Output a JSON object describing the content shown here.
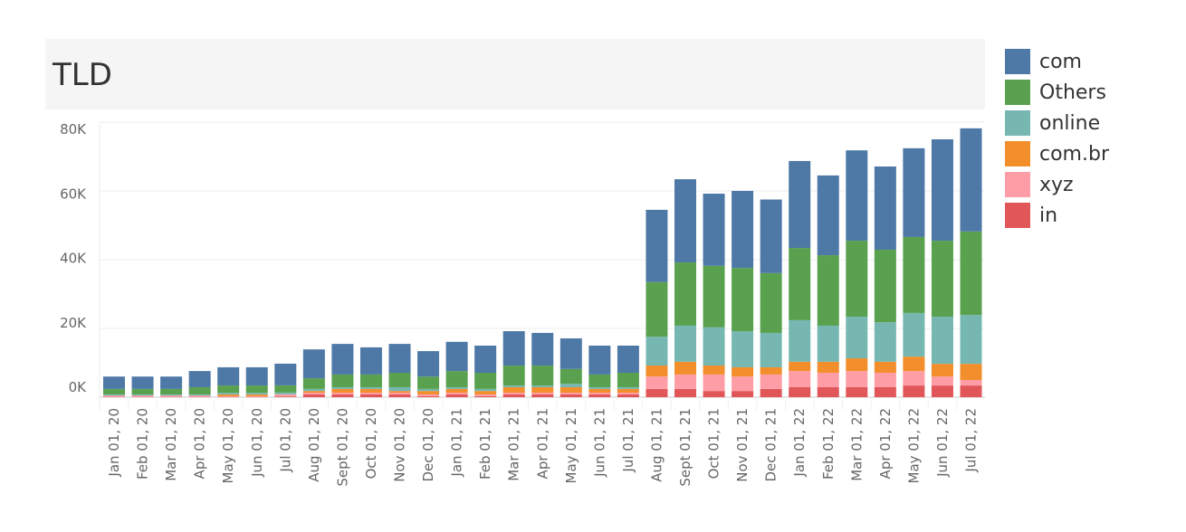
{
  "chart_data": {
    "type": "bar",
    "stacked": true,
    "title": "TLD",
    "xlabel": "",
    "ylabel": "",
    "ylim": [
      0,
      80000
    ],
    "yticks": [
      "0K",
      "20K",
      "40K",
      "60K",
      "80K"
    ],
    "grid": true,
    "legend_position": "right",
    "categories": [
      "Jan 01, 20",
      "Feb 01, 20",
      "Mar 01, 20",
      "Apr 01, 20",
      "May 01, 20",
      "Jun 01, 20",
      "Jul 01, 20",
      "Aug 01, 20",
      "Sept 01, 20",
      "Oct 01, 20",
      "Nov 01, 20",
      "Dec 01, 20",
      "Jan 01, 21",
      "Feb 01, 21",
      "Mar 01, 21",
      "Apr 01, 21",
      "May 01, 21",
      "Jun 01, 21",
      "Jul 01, 21",
      "Aug 01, 21",
      "Sept 01, 21",
      "Oct 01, 21",
      "Nov 01, 21",
      "Dec 01, 21",
      "Jan 01, 22",
      "Feb 01, 22",
      "Mar 01, 22",
      "Apr 01, 22",
      "May 01, 22",
      "Jun 01, 22",
      "Jul 01, 22"
    ],
    "series": [
      {
        "name": "in",
        "color": "#e15759",
        "values": [
          100,
          100,
          100,
          100,
          100,
          100,
          200,
          800,
          800,
          800,
          800,
          300,
          800,
          300,
          800,
          800,
          800,
          800,
          800,
          2400,
          2400,
          1800,
          1800,
          2400,
          2900,
          2900,
          2900,
          2900,
          3400,
          3400,
          3400
        ]
      },
      {
        "name": "xyz",
        "color": "#ff9da7",
        "values": [
          400,
          400,
          400,
          400,
          200,
          200,
          600,
          500,
          500,
          500,
          500,
          500,
          500,
          500,
          500,
          500,
          500,
          500,
          500,
          3600,
          4200,
          4800,
          4200,
          4200,
          4700,
          4200,
          4700,
          4200,
          4200,
          2600,
          1600
        ]
      },
      {
        "name": "com.br",
        "color": "#f28e2b",
        "values": [
          0,
          0,
          0,
          0,
          500,
          500,
          50,
          500,
          1100,
          1100,
          500,
          1000,
          1100,
          1000,
          1600,
          1600,
          1600,
          1100,
          1100,
          3200,
          3700,
          2600,
          2700,
          2100,
          2700,
          3200,
          3700,
          3200,
          4200,
          3700,
          4700
        ]
      },
      {
        "name": "online",
        "color": "#76b7b2",
        "values": [
          300,
          300,
          300,
          300,
          500,
          500,
          500,
          600,
          500,
          500,
          1100,
          600,
          500,
          600,
          500,
          500,
          1000,
          500,
          500,
          8400,
          10500,
          11100,
          10500,
          10000,
          12100,
          10500,
          12100,
          11500,
          12700,
          13700,
          14200
        ]
      },
      {
        "name": "Others",
        "color": "#59a14f",
        "values": [
          1600,
          1600,
          1600,
          2100,
          2100,
          2100,
          2100,
          3100,
          3700,
          3700,
          4200,
          3600,
          4700,
          4700,
          5800,
          5800,
          4300,
          3700,
          4200,
          15900,
          18400,
          17900,
          18400,
          17400,
          21000,
          20500,
          22100,
          21100,
          22100,
          22100,
          24300
        ]
      },
      {
        "name": "com",
        "color": "#4e79a7",
        "values": [
          3600,
          3600,
          3600,
          4700,
          5300,
          5300,
          6300,
          8400,
          8900,
          7900,
          8400,
          7400,
          8500,
          7900,
          10000,
          9500,
          8900,
          8400,
          7900,
          21000,
          24200,
          21000,
          22400,
          21400,
          25300,
          23200,
          26300,
          24200,
          25800,
          29500,
          30000
        ]
      }
    ]
  }
}
